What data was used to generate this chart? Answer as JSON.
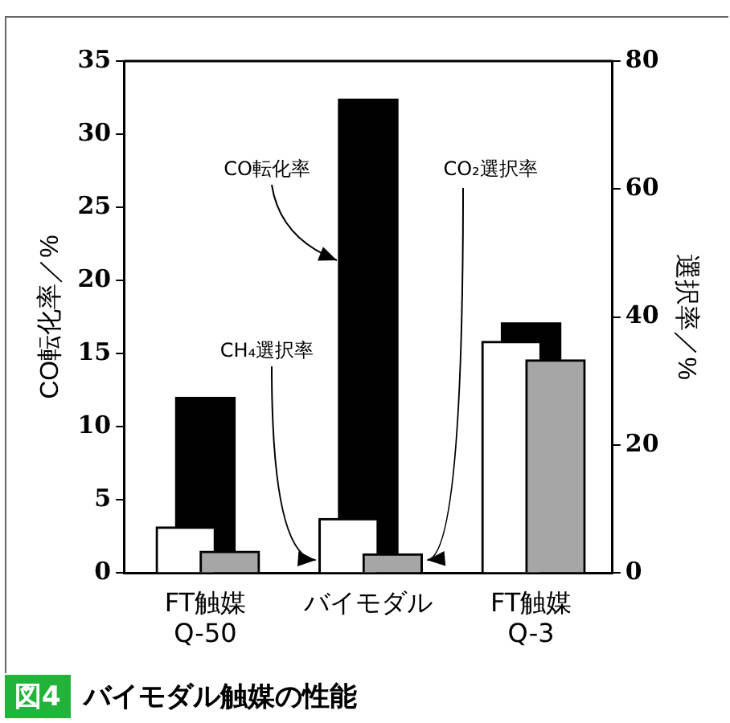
{
  "chart_data": {
    "type": "bar",
    "title": "バイモダル触媒の性能",
    "annotations": [
      "図4"
    ],
    "categories": [
      "FT触媒\nQ-50",
      "バイモダル",
      "FT触媒\nQ-3"
    ],
    "ylabel": "CO転化率／%",
    "y2label": "選択率／%",
    "ylim": [
      0,
      35
    ],
    "yticks": [
      0,
      5,
      10,
      15,
      20,
      25,
      30,
      35
    ],
    "y2lim": [
      0,
      80
    ],
    "y2ticks": [
      0,
      20,
      40,
      60,
      80
    ],
    "series": [
      {
        "name": "CH₄選択率",
        "color": "#ffffff",
        "axis": "y2",
        "values": [
          7.2,
          8.5,
          36.2
        ]
      },
      {
        "name": "CO転化率",
        "color": "#000000",
        "values": [
          12.0,
          32.4,
          17.1
        ]
      },
      {
        "name": "CO₂選択率",
        "color": "#a6a6a6",
        "axis": "y2",
        "values": [
          3.4,
          3.0,
          33.3
        ]
      }
    ],
    "grid": false,
    "legend": false
  }
}
